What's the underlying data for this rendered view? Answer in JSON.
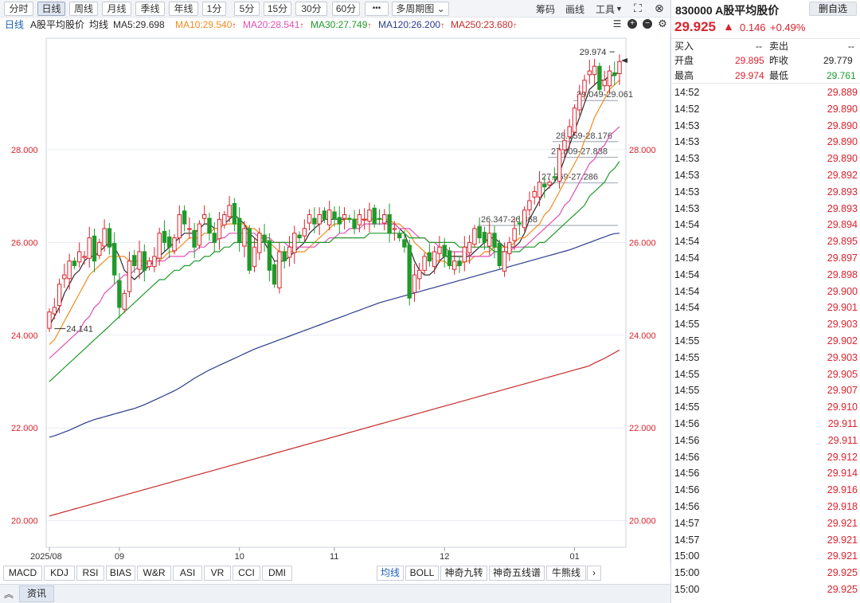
{
  "toolbar": {
    "periods": [
      "分时",
      "日线",
      "周线",
      "月线",
      "季线",
      "年线",
      "1分",
      "5分",
      "15分",
      "30分",
      "60分"
    ],
    "active_period": "日线",
    "more": "•••",
    "multi_period": "多周期图",
    "tools": [
      "筹码",
      "画线",
      "工具"
    ]
  },
  "legend": {
    "period": "日线",
    "name": "A股平均股价",
    "avg": "均线",
    "items": [
      {
        "text": "MA5:29.698",
        "color": "#2b2b2b"
      },
      {
        "text": "MA10:29.540",
        "color": "#f08c1f"
      },
      {
        "text": "MA20:28.541",
        "color": "#e04fb5"
      },
      {
        "text": "MA30:27.749",
        "color": "#1f9a2a"
      },
      {
        "text": "MA120:26.200",
        "color": "#2b3c8c"
      },
      {
        "text": "MA250:23.680",
        "color": "#c82a2a"
      }
    ],
    "up_mark": "↑"
  },
  "chart_data": {
    "type": "candlestick",
    "title": "",
    "y_ticks": [
      "28.000",
      "26.000",
      "24.000",
      "22.000",
      "20.000"
    ],
    "ylim": [
      19.4,
      30.5
    ],
    "x_labels": [
      {
        "text": "2025/08",
        "i": 0
      },
      {
        "text": "09",
        "i": 14
      },
      {
        "text": "10",
        "i": 38
      },
      {
        "text": "11",
        "i": 57
      },
      {
        "text": "12",
        "i": 79
      },
      {
        "text": "01",
        "i": 105
      }
    ],
    "annotations": [
      {
        "text": "29.974",
        "price": 29.974,
        "i": 113,
        "type": "high"
      },
      {
        "text": "24.141",
        "price": 24.141,
        "i": 1,
        "type": "low"
      },
      {
        "text": "29.049-29.061",
        "low": 29.049,
        "high": 29.061
      },
      {
        "text": "28.159-28.176",
        "low": 28.159,
        "high": 28.176
      },
      {
        "text": "27.809-27.838",
        "low": 27.809,
        "high": 27.838
      },
      {
        "text": "27.269-27.286",
        "low": 27.269,
        "high": 27.286
      },
      {
        "text": "26.347-26.368",
        "low": 26.347,
        "high": 26.368
      }
    ],
    "close": [
      24.5,
      24.6,
      25.1,
      25.3,
      25.6,
      25.5,
      25.8,
      25.7,
      26.1,
      25.6,
      26.0,
      26.3,
      25.9,
      25.3,
      24.6,
      24.9,
      25.6,
      25.5,
      25.8,
      25.4,
      25.6,
      25.7,
      26.2,
      26.0,
      25.9,
      26.1,
      26.6,
      26.4,
      26.3,
      25.9,
      26.4,
      26.6,
      26.2,
      26.0,
      26.5,
      26.6,
      26.8,
      26.4,
      26.0,
      26.3,
      25.4,
      25.9,
      26.2,
      26.0,
      25.4,
      25.1,
      25.8,
      25.6,
      25.9,
      26.2,
      26.1,
      26.3,
      26.6,
      26.4,
      26.6,
      26.5,
      26.7,
      26.5,
      26.4,
      26.6,
      26.5,
      26.3,
      26.6,
      26.5,
      26.7,
      26.4,
      26.5,
      26.6,
      26.2,
      26.3,
      26.1,
      25.9,
      24.8,
      25.3,
      25.4,
      25.7,
      25.6,
      25.8,
      25.9,
      25.7,
      25.5,
      25.6,
      25.5,
      25.9,
      26.0,
      26.3,
      26.1,
      26.0,
      26.2,
      25.9,
      25.5,
      25.8,
      26.0,
      26.3,
      26.4,
      26.7,
      26.9,
      27.1,
      27.3,
      27.2,
      27.3,
      27.4,
      28.0,
      28.2,
      28.5,
      28.9,
      29.2,
      29.5,
      29.7,
      29.8,
      29.3,
      29.5,
      29.7,
      29.6,
      29.9
    ],
    "series": [
      {
        "name": "MA5",
        "color": "#2b2b2b",
        "values": [
          24.2,
          24.4,
          24.6,
          24.9,
          25.1,
          25.3,
          25.4,
          25.6,
          25.7,
          25.7,
          25.8,
          25.9,
          26.0,
          25.9,
          25.7,
          25.4,
          25.3,
          25.2,
          25.3,
          25.4,
          25.5,
          25.6,
          25.7,
          25.8,
          25.9,
          26.0,
          26.1,
          26.2,
          26.2,
          26.2,
          26.3,
          26.4,
          26.4,
          26.3,
          26.3,
          26.4,
          26.5,
          26.6,
          26.5,
          26.4,
          26.2,
          26.1,
          26.0,
          26.0,
          25.8,
          25.6,
          25.6,
          25.6,
          25.7,
          25.8,
          25.9,
          26.0,
          26.2,
          26.3,
          26.4,
          26.5,
          26.5,
          26.5,
          26.5,
          26.5,
          26.5,
          26.5,
          26.5,
          26.5,
          26.5,
          26.5,
          26.5,
          26.5,
          26.4,
          26.4,
          26.3,
          26.2,
          25.9,
          25.6,
          25.4,
          25.3,
          25.3,
          25.4,
          25.6,
          25.7,
          25.7,
          25.7,
          25.7,
          25.7,
          25.7,
          25.8,
          25.9,
          26.0,
          26.1,
          26.1,
          26.0,
          25.9,
          25.9,
          25.9,
          26.0,
          26.2,
          26.5,
          26.7,
          26.9,
          27.1,
          27.2,
          27.3,
          27.5,
          27.8,
          28.1,
          28.4,
          28.7,
          29.0,
          29.3,
          29.4,
          29.5,
          29.5,
          29.6,
          29.6,
          29.7
        ]
      },
      {
        "name": "MA10",
        "color": "#f08c1f",
        "values": [
          23.8,
          23.9,
          24.1,
          24.3,
          24.5,
          24.7,
          24.9,
          25.1,
          25.3,
          25.4,
          25.5,
          25.6,
          25.7,
          25.7,
          25.7,
          25.7,
          25.6,
          25.6,
          25.6,
          25.6,
          25.6,
          25.6,
          25.6,
          25.7,
          25.8,
          25.8,
          25.9,
          26.0,
          26.1,
          26.1,
          26.1,
          26.2,
          26.2,
          26.3,
          26.3,
          26.4,
          26.4,
          26.4,
          26.4,
          26.4,
          26.3,
          26.3,
          26.2,
          26.1,
          26.0,
          25.9,
          25.8,
          25.8,
          25.8,
          25.8,
          25.8,
          25.8,
          25.9,
          26.0,
          26.1,
          26.2,
          26.3,
          26.4,
          26.4,
          26.5,
          26.5,
          26.5,
          26.5,
          26.5,
          26.5,
          26.5,
          26.5,
          26.5,
          26.5,
          26.4,
          26.4,
          26.3,
          26.2,
          26.0,
          25.9,
          25.8,
          25.7,
          25.6,
          25.6,
          25.6,
          25.5,
          25.5,
          25.5,
          25.6,
          25.6,
          25.7,
          25.7,
          25.8,
          25.8,
          25.9,
          25.9,
          25.9,
          25.9,
          26.0,
          26.1,
          26.1,
          26.2,
          26.3,
          26.4,
          26.6,
          26.7,
          26.9,
          27.1,
          27.3,
          27.5,
          27.7,
          27.9,
          28.2,
          28.4,
          28.7,
          28.9,
          29.1,
          29.3,
          29.4,
          29.5
        ]
      },
      {
        "name": "MA20",
        "color": "#e04fb5",
        "values": [
          23.5,
          23.6,
          23.7,
          23.8,
          23.9,
          24.0,
          24.1,
          24.3,
          24.4,
          24.6,
          24.7,
          24.9,
          25.0,
          25.1,
          25.2,
          25.3,
          25.3,
          25.4,
          25.5,
          25.5,
          25.6,
          25.6,
          25.6,
          25.6,
          25.7,
          25.7,
          25.7,
          25.7,
          25.8,
          25.8,
          25.9,
          25.9,
          26.0,
          26.0,
          26.1,
          26.1,
          26.2,
          26.2,
          26.2,
          26.2,
          26.2,
          26.2,
          26.1,
          26.1,
          26.1,
          26.0,
          26.0,
          26.0,
          25.9,
          25.9,
          25.9,
          25.9,
          25.9,
          25.9,
          26.0,
          26.0,
          26.1,
          26.1,
          26.2,
          26.2,
          26.3,
          26.3,
          26.3,
          26.4,
          26.4,
          26.4,
          26.4,
          26.4,
          26.4,
          26.4,
          26.3,
          26.3,
          26.3,
          26.2,
          26.1,
          26.1,
          26.0,
          26.0,
          25.9,
          25.9,
          25.8,
          25.8,
          25.8,
          25.8,
          25.7,
          25.7,
          25.7,
          25.7,
          25.7,
          25.8,
          25.8,
          25.8,
          25.8,
          25.9,
          25.9,
          25.9,
          26.0,
          26.1,
          26.2,
          26.3,
          26.4,
          26.5,
          26.6,
          26.8,
          26.9,
          27.1,
          27.3,
          27.5,
          27.7,
          27.8,
          28.0,
          28.1,
          28.3,
          28.4,
          28.5
        ]
      },
      {
        "name": "MA30",
        "color": "#1f9a2a",
        "values": [
          23.0,
          23.1,
          23.2,
          23.3,
          23.4,
          23.5,
          23.6,
          23.7,
          23.8,
          23.9,
          24.0,
          24.1,
          24.2,
          24.3,
          24.4,
          24.5,
          24.6,
          24.7,
          24.8,
          24.9,
          25.0,
          25.1,
          25.2,
          25.2,
          25.3,
          25.4,
          25.4,
          25.5,
          25.5,
          25.6,
          25.6,
          25.7,
          25.7,
          25.8,
          25.8,
          25.9,
          25.9,
          26.0,
          26.0,
          26.0,
          26.0,
          26.0,
          26.0,
          26.0,
          26.0,
          26.0,
          26.0,
          26.0,
          26.0,
          26.0,
          26.0,
          26.0,
          26.0,
          26.0,
          26.0,
          26.0,
          26.0,
          26.1,
          26.1,
          26.1,
          26.1,
          26.1,
          26.1,
          26.1,
          26.2,
          26.2,
          26.2,
          26.2,
          26.2,
          26.2,
          26.2,
          26.2,
          26.1,
          26.1,
          26.1,
          26.1,
          26.0,
          26.0,
          26.0,
          26.0,
          26.0,
          26.0,
          25.9,
          25.9,
          25.9,
          25.9,
          25.9,
          25.9,
          25.9,
          25.8,
          25.8,
          25.8,
          25.8,
          25.8,
          25.8,
          25.9,
          25.9,
          25.9,
          26.0,
          26.0,
          26.1,
          26.2,
          26.3,
          26.4,
          26.5,
          26.6,
          26.7,
          26.8,
          27.0,
          27.1,
          27.2,
          27.3,
          27.5,
          27.6,
          27.75
        ]
      },
      {
        "name": "MA120",
        "color": "#2b3c8c",
        "values": [
          21.8,
          21.83,
          21.87,
          21.91,
          21.95,
          22.0,
          22.05,
          22.1,
          22.14,
          22.18,
          22.21,
          22.24,
          22.27,
          22.3,
          22.33,
          22.36,
          22.39,
          22.42,
          22.46,
          22.5,
          22.55,
          22.6,
          22.65,
          22.7,
          22.75,
          22.8,
          22.86,
          22.93,
          23.0,
          23.07,
          23.13,
          23.19,
          23.25,
          23.3,
          23.35,
          23.4,
          23.45,
          23.5,
          23.55,
          23.6,
          23.65,
          23.7,
          23.74,
          23.78,
          23.82,
          23.86,
          23.9,
          23.94,
          23.98,
          24.02,
          24.06,
          24.1,
          24.14,
          24.18,
          24.22,
          24.26,
          24.3,
          24.34,
          24.38,
          24.42,
          24.46,
          24.5,
          24.54,
          24.58,
          24.62,
          24.66,
          24.7,
          24.73,
          24.76,
          24.79,
          24.82,
          24.85,
          24.88,
          24.91,
          24.94,
          24.97,
          25.0,
          25.03,
          25.06,
          25.09,
          25.12,
          25.15,
          25.18,
          25.21,
          25.24,
          25.27,
          25.3,
          25.33,
          25.36,
          25.39,
          25.42,
          25.45,
          25.48,
          25.51,
          25.54,
          25.57,
          25.6,
          25.63,
          25.66,
          25.69,
          25.72,
          25.75,
          25.78,
          25.81,
          25.84,
          25.88,
          25.92,
          25.96,
          26.0,
          26.04,
          26.08,
          26.12,
          26.16,
          26.19,
          26.2
        ]
      },
      {
        "name": "MA250",
        "color": "#c82a2a",
        "values": [
          20.1,
          20.13,
          20.16,
          20.19,
          20.22,
          20.25,
          20.28,
          20.31,
          20.34,
          20.37,
          20.4,
          20.43,
          20.46,
          20.49,
          20.52,
          20.55,
          20.58,
          20.61,
          20.64,
          20.67,
          20.7,
          20.73,
          20.76,
          20.79,
          20.82,
          20.85,
          20.88,
          20.91,
          20.94,
          20.97,
          21.0,
          21.03,
          21.06,
          21.09,
          21.12,
          21.15,
          21.18,
          21.21,
          21.24,
          21.27,
          21.3,
          21.33,
          21.36,
          21.39,
          21.42,
          21.45,
          21.48,
          21.51,
          21.54,
          21.57,
          21.6,
          21.63,
          21.66,
          21.69,
          21.72,
          21.75,
          21.78,
          21.81,
          21.84,
          21.87,
          21.9,
          21.93,
          21.96,
          21.99,
          22.02,
          22.05,
          22.08,
          22.11,
          22.14,
          22.17,
          22.2,
          22.23,
          22.26,
          22.29,
          22.32,
          22.35,
          22.38,
          22.41,
          22.44,
          22.47,
          22.5,
          22.53,
          22.56,
          22.59,
          22.62,
          22.65,
          22.68,
          22.71,
          22.74,
          22.77,
          22.8,
          22.83,
          22.86,
          22.89,
          22.92,
          22.95,
          22.98,
          23.01,
          23.04,
          23.07,
          23.1,
          23.13,
          23.16,
          23.19,
          23.22,
          23.25,
          23.28,
          23.31,
          23.34,
          23.4,
          23.45,
          23.5,
          23.56,
          23.62,
          23.68
        ]
      }
    ]
  },
  "indicators": {
    "left": [
      "MACD",
      "KDJ",
      "RSI",
      "BIAS",
      "W&R",
      "ASI",
      "VR",
      "CCI",
      "DMI"
    ],
    "right": [
      "均线",
      "BOLL",
      "神奇九转",
      "神奇五线谱",
      "牛熊线"
    ],
    "next": "›"
  },
  "news": {
    "label": "资讯",
    "collapse": "︽"
  },
  "quote": {
    "code": "830000",
    "name": "A股平均股价",
    "fav_button": "删自选",
    "price": "29.925",
    "arrow": "🡅",
    "change": "0.146",
    "change_pct": "+0.49%",
    "buy_label": "买入",
    "buy_value": "--",
    "sell_label": "卖出",
    "sell_value": "--",
    "open_label": "开盘",
    "open_value": "29.895",
    "prev_label": "昨收",
    "prev_value": "29.779",
    "high_label": "最高",
    "high_value": "29.974",
    "low_label": "最低",
    "low_value": "29.761"
  },
  "ticks": [
    {
      "time": "14:52",
      "price": "29.889"
    },
    {
      "time": "14:52",
      "price": "29.890"
    },
    {
      "time": "14:53",
      "price": "29.890"
    },
    {
      "time": "14:53",
      "price": "29.890"
    },
    {
      "time": "14:53",
      "price": "29.890"
    },
    {
      "time": "14:53",
      "price": "29.892"
    },
    {
      "time": "14:53",
      "price": "29.893"
    },
    {
      "time": "14:53",
      "price": "29.893"
    },
    {
      "time": "14:54",
      "price": "29.894"
    },
    {
      "time": "14:54",
      "price": "29.895"
    },
    {
      "time": "14:54",
      "price": "29.897"
    },
    {
      "time": "14:54",
      "price": "29.898"
    },
    {
      "time": "14:54",
      "price": "29.900"
    },
    {
      "time": "14:54",
      "price": "29.901"
    },
    {
      "time": "14:55",
      "price": "29.903"
    },
    {
      "time": "14:55",
      "price": "29.902"
    },
    {
      "time": "14:55",
      "price": "29.903"
    },
    {
      "time": "14:55",
      "price": "29.905"
    },
    {
      "time": "14:55",
      "price": "29.907"
    },
    {
      "time": "14:55",
      "price": "29.910"
    },
    {
      "time": "14:56",
      "price": "29.911"
    },
    {
      "time": "14:56",
      "price": "29.911"
    },
    {
      "time": "14:56",
      "price": "29.912"
    },
    {
      "time": "14:56",
      "price": "29.914"
    },
    {
      "time": "14:56",
      "price": "29.916"
    },
    {
      "time": "14:56",
      "price": "29.918"
    },
    {
      "time": "14:57",
      "price": "29.921"
    },
    {
      "time": "14:57",
      "price": "29.921"
    },
    {
      "time": "15:00",
      "price": "29.921"
    },
    {
      "time": "15:00",
      "price": "29.925"
    },
    {
      "time": "15:00",
      "price": "29.925"
    }
  ]
}
